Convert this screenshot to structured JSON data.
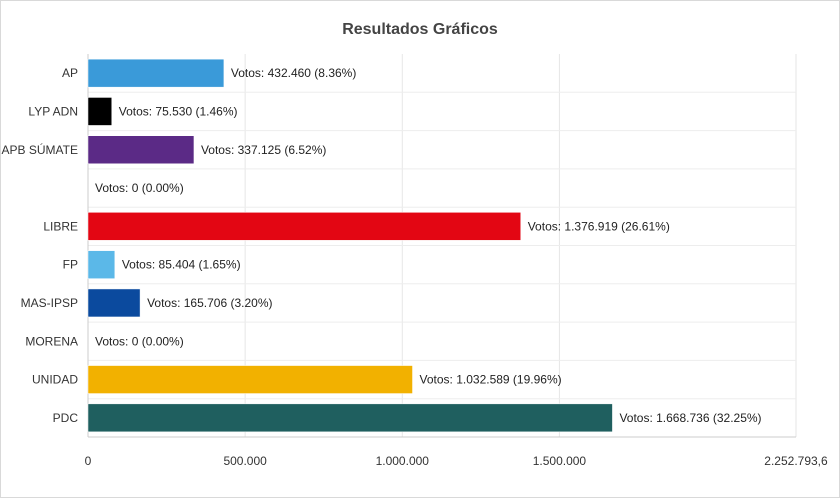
{
  "chart_data": {
    "type": "bar",
    "orientation": "horizontal",
    "title": "Resultados Gráficos",
    "categories": [
      "AP",
      "LYP ADN",
      "APB SÚMATE",
      "",
      "LIBRE",
      "FP",
      "MAS-IPSP",
      "MORENA",
      "UNIDAD",
      "PDC"
    ],
    "values": [
      432460,
      75530,
      337125,
      0,
      1376919,
      85404,
      165706,
      0,
      1032589,
      1668736
    ],
    "labels": [
      "Votos: 432.460 (8.36%)",
      "Votos: 75.530 (1.46%)",
      "Votos: 337.125 (6.52%)",
      "Votos: 0 (0.00%)",
      "Votos: 1.376.919 (26.61%)",
      "Votos: 85.404 (1.65%)",
      "Votos: 165.706 (3.20%)",
      "Votos: 0 (0.00%)",
      "Votos: 1.032.589 (19.96%)",
      "Votos: 1.668.736 (32.25%)"
    ],
    "colors": [
      "#3a9ad9",
      "#000000",
      "#5b2a86",
      "#cccccc",
      "#e30613",
      "#5bb8e8",
      "#0b4a9e",
      "#8a1538",
      "#f2b100",
      "#1f5f5f"
    ],
    "xlim": [
      0,
      2252793.6
    ],
    "xticks": [
      0,
      500000,
      1000000,
      1500000,
      2252793.6
    ],
    "xtick_labels": [
      "0",
      "500.000",
      "1.000.000",
      "1.500.000",
      "2.252.793,6"
    ],
    "grid": true,
    "legend": "none"
  }
}
